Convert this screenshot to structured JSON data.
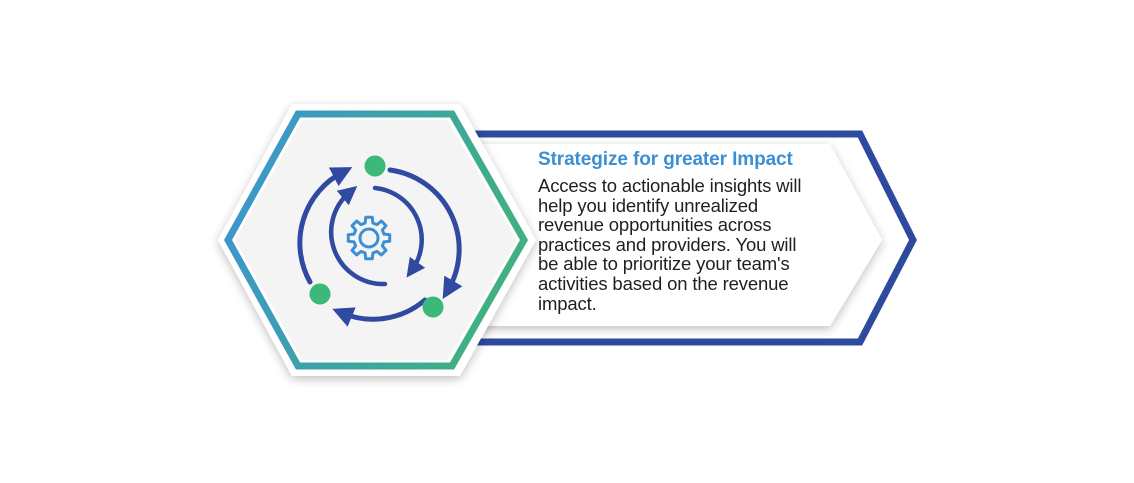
{
  "colors": {
    "title": "#3d8fd4",
    "body": "#1f1f1f",
    "arrow_border": "#2e4a9e",
    "hex_gradient_start": "#3b94d3",
    "hex_gradient_end": "#3fb081",
    "hex_fill": "#f4f4f5",
    "icon_blue": "#2f4aa0",
    "icon_accent": "#3d8fd4",
    "dot_green": "#3cb878"
  },
  "icons": {
    "main": "strategy-cycle-gear-icon"
  },
  "card": {
    "title": "Strategize for greater Impact",
    "body_lines": [
      "Access to actionable insights will",
      "help you identify unrealized",
      "revenue opportunities across",
      "practices and providers. You will",
      "be able to prioritize your team's",
      "activities based on the revenue",
      "impact."
    ]
  }
}
